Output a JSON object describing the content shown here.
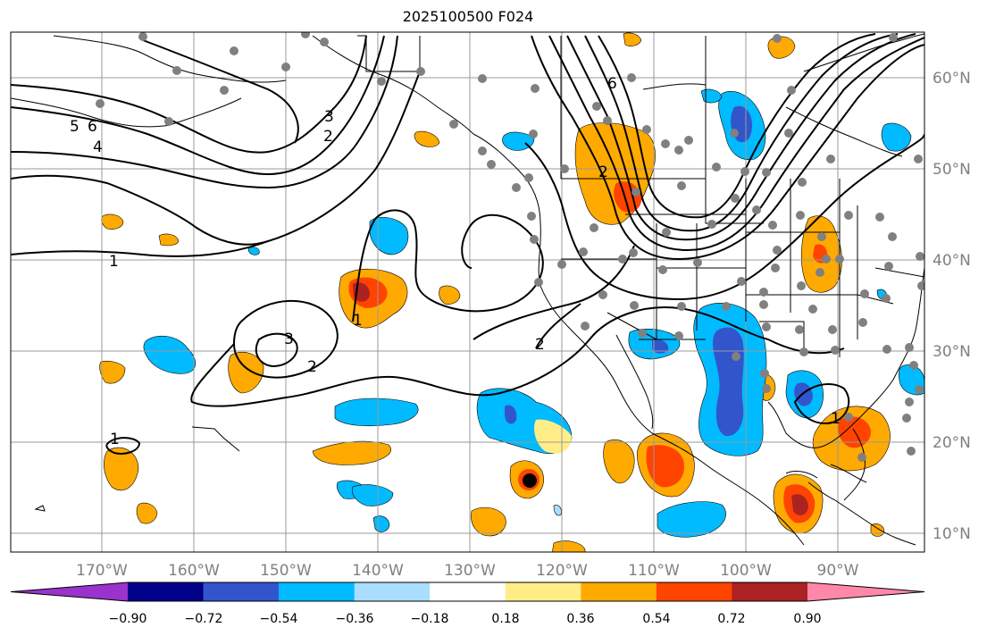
{
  "title": "2025100500 F024",
  "lon_labels": [
    "170°W",
    "160°W",
    "150°W",
    "140°W",
    "130°W",
    "120°W",
    "110°W",
    "100°W",
    "90°W"
  ],
  "lat_labels": [
    "60°N",
    "50°N",
    "40°N",
    "30°N",
    "20°N",
    "10°N"
  ],
  "contour_labels": [
    "5",
    "6",
    "4",
    "1",
    "3",
    "2",
    "2",
    "1",
    "3",
    "2",
    "6",
    "2",
    "1",
    "1"
  ],
  "colorbar": {
    "tick_labels": [
      "−0.90",
      "−0.72",
      "−0.54",
      "−0.36",
      "−0.18",
      "0.18",
      "0.36",
      "0.54",
      "0.72",
      "0.90"
    ],
    "colors": [
      "#9933cc",
      "#000088",
      "#3355cc",
      "#00bbff",
      "#aaddff",
      "#ffffff",
      "#ffee88",
      "#ffaa00",
      "#ff4400",
      "#aa2222",
      "#ff88aa"
    ]
  }
}
